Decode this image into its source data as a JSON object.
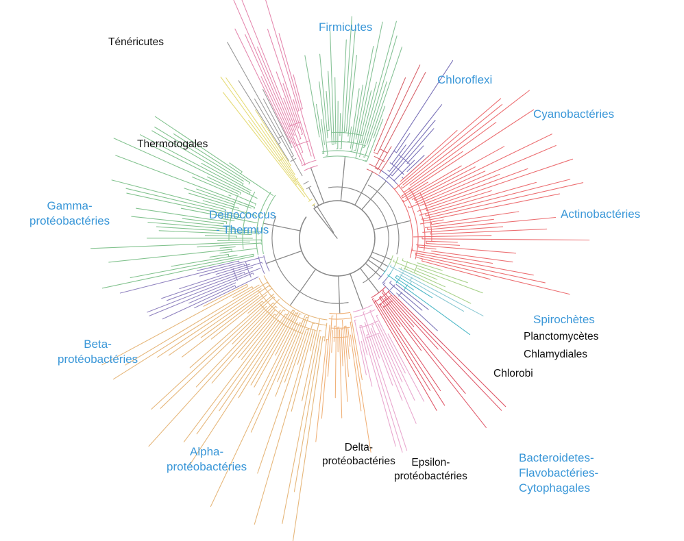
{
  "colors": {
    "trunk": "#8a8a8a",
    "label_blue": "#3a97d8",
    "label_dark": "#111111"
  },
  "clades": [
    {
      "id": "tenericutes",
      "lines": [
        "Ténéricutes"
      ],
      "style": "dark",
      "color": "#e58ab0",
      "a0": 244,
      "a1": 255,
      "n": 14,
      "r0": 200,
      "r1": 450,
      "base": 110
    },
    {
      "id": "thermotogales",
      "lines": [
        "Thermotogales"
      ],
      "style": "dark",
      "color": "#9a9a9a",
      "a0": 238,
      "a1": 243.5,
      "n": 5,
      "r0": 200,
      "r1": 330,
      "base": 85
    },
    {
      "id": "deinococcus",
      "lines": [
        "Deinococcus",
        "- Thermus"
      ],
      "style": "blue",
      "color": "#e6dc7a",
      "a0": 232,
      "a1": 237.5,
      "n": 6,
      "r0": 170,
      "r1": 300,
      "base": 60
    },
    {
      "id": "firmicutes",
      "lines": [
        "Firmicutes"
      ],
      "style": "blue",
      "color": "#86c296",
      "a0": 260,
      "a1": 291,
      "n": 28,
      "r0": 160,
      "r1": 330,
      "base": 120
    },
    {
      "id": "chloroflexi",
      "lines": [
        "Chloroflexi"
      ],
      "style": "blue",
      "color": "#d8646c",
      "a0": 293,
      "a1": 303,
      "n": 5,
      "r0": 150,
      "r1": 300,
      "base": 110
    },
    {
      "id": "cyanobacteries",
      "lines": [
        "Cyanobactéries"
      ],
      "style": "blue",
      "color": "#7a72b8",
      "a0": 303,
      "a1": 318,
      "n": 10,
      "r0": 160,
      "r1": 340,
      "base": 110
    },
    {
      "id": "actinobacteries",
      "lines": [
        "Actinobactéries"
      ],
      "style": "blue",
      "color": "#ec6f72",
      "a0": 318,
      "a1": 375,
      "n": 40,
      "r0": 140,
      "r1": 370,
      "base": 110
    },
    {
      "id": "spirochetes",
      "lines": [
        "Spirochètes"
      ],
      "style": "blue",
      "color": "#a9d28c",
      "a0": 377,
      "a1": 386,
      "n": 6,
      "r0": 130,
      "r1": 300,
      "base": 85
    },
    {
      "id": "planctomycetes",
      "lines": [
        "Planctomycètes"
      ],
      "style": "dark",
      "color": "#8cc9d4",
      "a0": 386,
      "a1": 392,
      "n": 4,
      "r0": 130,
      "r1": 280,
      "base": 85
    },
    {
      "id": "chlamydiales",
      "lines": [
        "Chlamydiales"
      ],
      "style": "dark",
      "color": "#4fb9c8",
      "a0": 392,
      "a1": 398,
      "n": 4,
      "r0": 130,
      "r1": 280,
      "base": 85
    },
    {
      "id": "chlorobi",
      "lines": [
        "Chlorobi"
      ],
      "style": "dark",
      "color": "#7d77b9",
      "a0": 398,
      "a1": 405,
      "n": 4,
      "r0": 130,
      "r1": 270,
      "base": 85
    },
    {
      "id": "bacteroidetes",
      "lines": [
        "Bacteroidetes-",
        "Flavobactéries-",
        "Cytophagales"
      ],
      "style": "blue",
      "color": "#e05b6c",
      "a0": 405,
      "a1": 420,
      "n": 12,
      "r0": 120,
      "r1": 360,
      "base": 100
    },
    {
      "id": "epsilon",
      "lines": [
        "Epsilon-",
        "protéobactéries"
      ],
      "style": "dark",
      "color": "#e9a8cf",
      "a0": 422,
      "a1": 438,
      "n": 14,
      "r0": 160,
      "r1": 340,
      "base": 110
    },
    {
      "id": "delta",
      "lines": [
        "Delta-",
        "protéobactéries"
      ],
      "style": "dark",
      "color": "#f0b27a",
      "a0": 440,
      "a1": 456,
      "n": 16,
      "r0": 150,
      "r1": 320,
      "base": 110
    },
    {
      "id": "alpha",
      "lines": [
        "Alpha-",
        "protéobactéries"
      ],
      "style": "blue",
      "color": "#e6b77b",
      "a0": 457,
      "a1": 513,
      "n": 44,
      "r0": 150,
      "r1": 450,
      "base": 120
    },
    {
      "id": "beta",
      "lines": [
        "Beta-",
        "protéobactéries"
      ],
      "style": "blue",
      "color": "#9184c0",
      "a0": 514,
      "a1": 527,
      "n": 12,
      "r0": 170,
      "r1": 330,
      "base": 110
    },
    {
      "id": "gamma",
      "lines": [
        "Gamma-",
        "protéobactéries"
      ],
      "style": "blue",
      "color": "#83c38f",
      "a0": 528,
      "a1": 575,
      "n": 40,
      "r0": 170,
      "r1": 360,
      "base": 110
    }
  ]
}
